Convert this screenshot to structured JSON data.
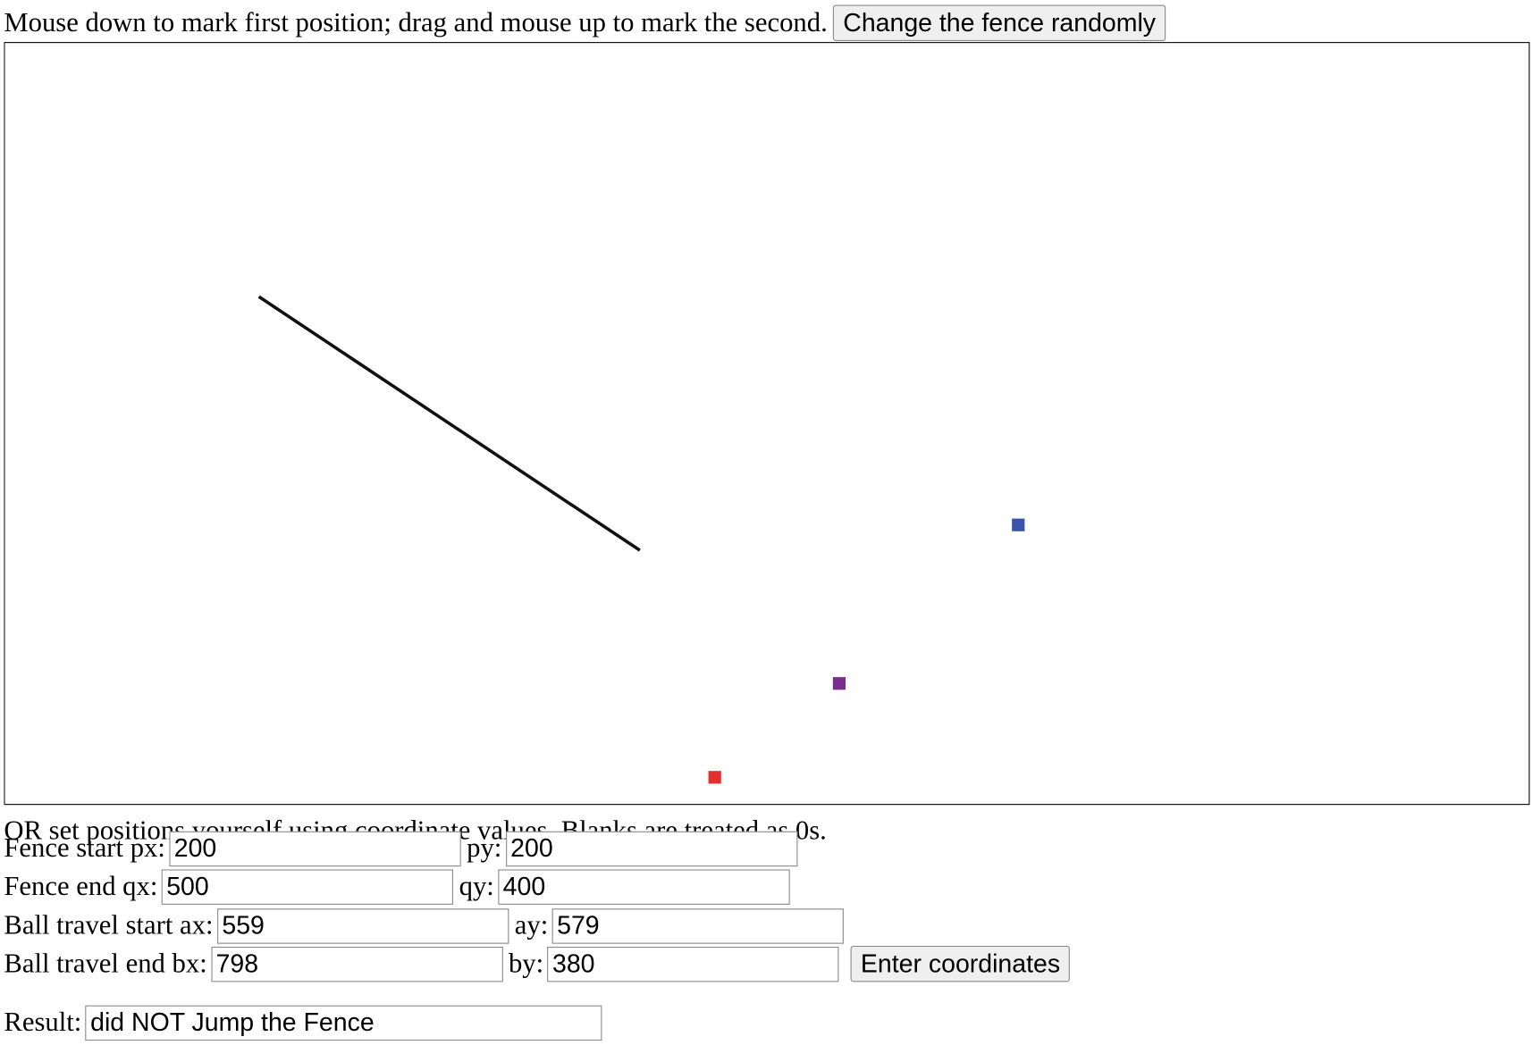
{
  "instructions": "Mouse down to mark first position; drag and mouse up to mark the second.",
  "randomize_button": "Change the fence randomly",
  "note": "OR set positions yourself using coordinate values. Blanks are treated as 0s.",
  "rows": [
    {
      "fields": [
        {
          "label": "Fence start px:",
          "value": 200
        },
        {
          "label": "py:",
          "value": 200
        }
      ]
    },
    {
      "fields": [
        {
          "label": "Fence end qx:",
          "value": 500
        },
        {
          "label": "qy:",
          "value": 400
        }
      ]
    },
    {
      "fields": [
        {
          "label": "Ball travel start ax:",
          "value": 559
        },
        {
          "label": "ay:",
          "value": 579
        }
      ]
    },
    {
      "fields": [
        {
          "label": "Ball travel end bx:",
          "value": 798
        },
        {
          "label": "by:",
          "value": 380
        }
      ]
    }
  ],
  "enter_button": "Enter coordinates",
  "result": {
    "label": "Result:",
    "value": "did NOT Jump the Fence"
  }
}
